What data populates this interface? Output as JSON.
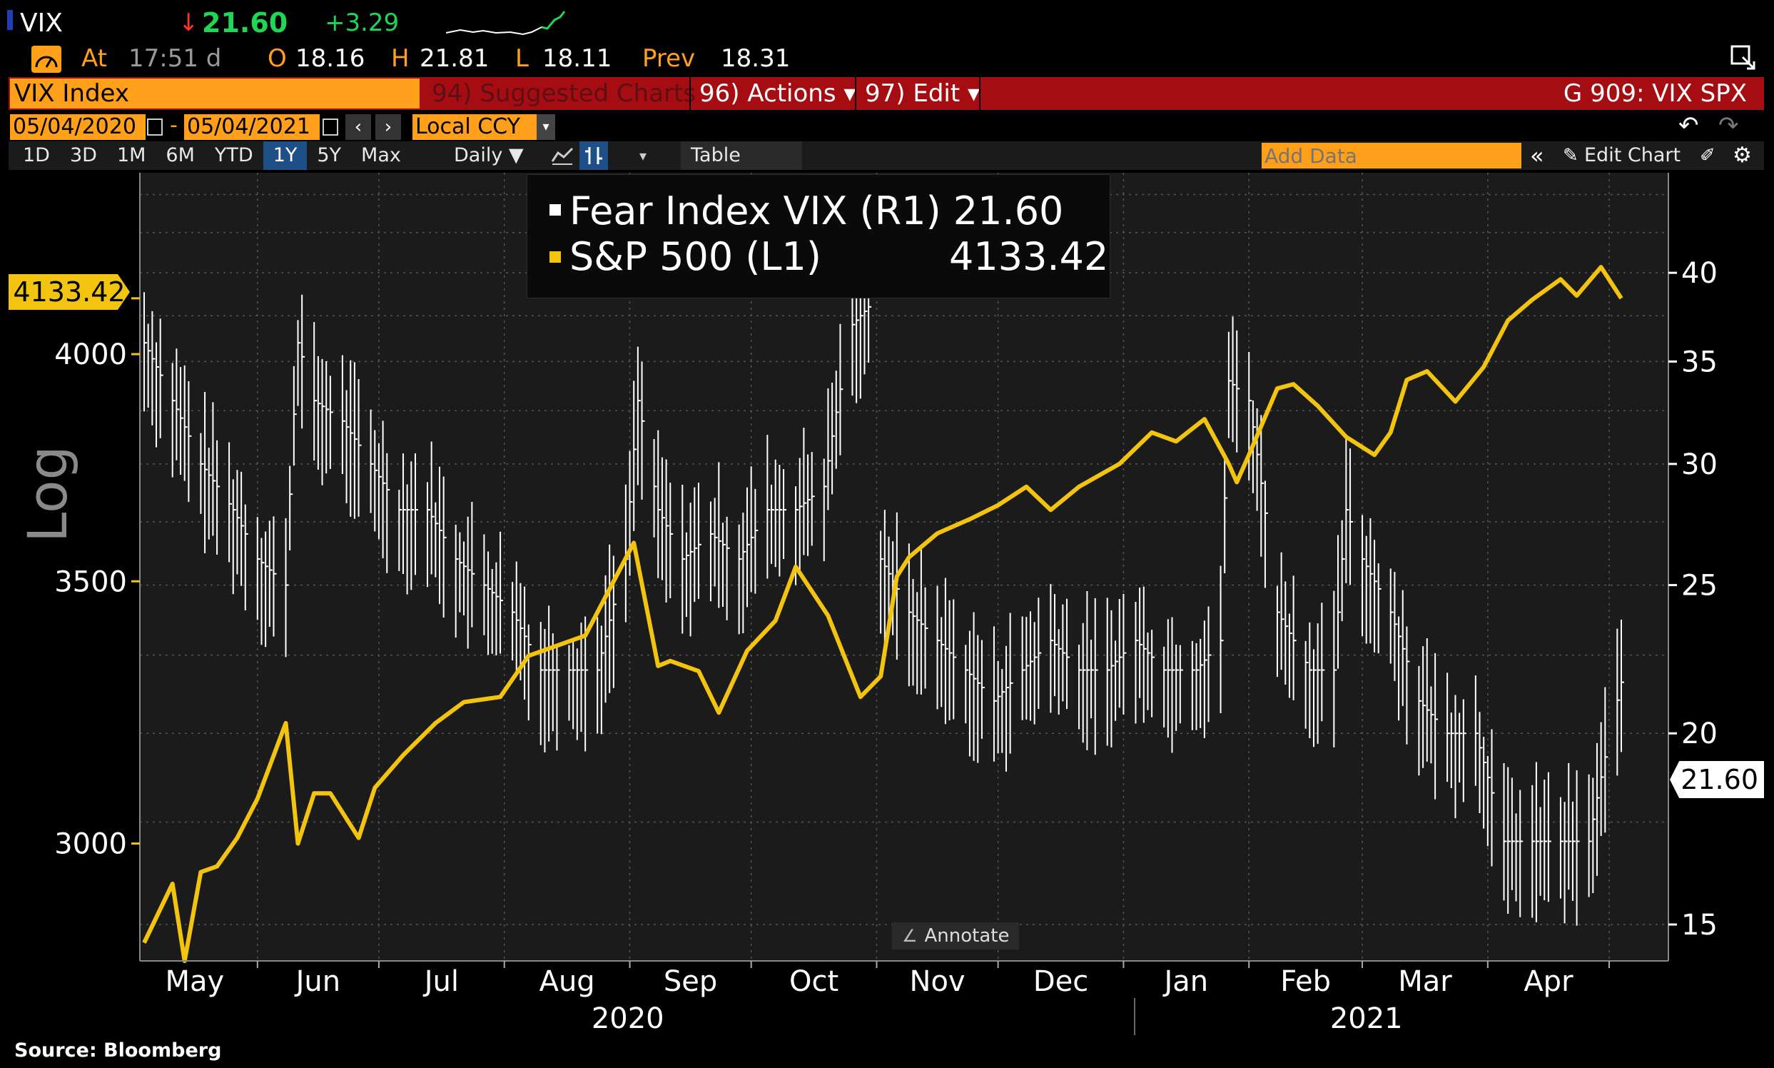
{
  "header": {
    "ticker": "VIX",
    "arrow": "↓",
    "last": "21.60",
    "change": "+3.29",
    "at_label": "At",
    "time": "17:51 d",
    "open_label": "O",
    "open": "18.16",
    "high_label": "H",
    "high": "21.81",
    "low_label": "L",
    "low": "18.11",
    "prev_label": "Prev",
    "prev": "18.31"
  },
  "menubar": {
    "security": "VIX Index",
    "suggested": "94) Suggested Charts",
    "actions": "96) Actions ▾",
    "edit": "97) Edit ▾",
    "chart_code": "G 909: VIX SPX"
  },
  "daterow": {
    "start": "05/04/2020",
    "dash": "-",
    "end": "05/04/2021",
    "currency": "Local CCY"
  },
  "toolbar": {
    "periods": [
      "1D",
      "3D",
      "1M",
      "6M",
      "YTD",
      "1Y",
      "5Y",
      "Max"
    ],
    "active": "1Y",
    "frequency": "Daily ▼",
    "table": "Table",
    "add_data_placeholder": "Add Data",
    "edit_chart": "Edit Chart"
  },
  "legend": {
    "vix_label": "Fear Index VIX (R1) 21.60",
    "spx_label": "S&P 500 (L1)",
    "spx_value": "4133.42"
  },
  "annotate": "Annotate",
  "log_label": "Log",
  "source": "Source:  Bloomberg",
  "colors": {
    "spx": "#f2c40f",
    "vix": "#ffffff",
    "accent": "#ff9f1a",
    "menubar": "#a50d12"
  },
  "chart_data": {
    "type": "line",
    "title": "",
    "scale": "log",
    "x_range": [
      "2020-05-04",
      "2021-05-04"
    ],
    "months": [
      "May",
      "Jun",
      "Jul",
      "Aug",
      "Sep",
      "Oct",
      "Nov",
      "Dec",
      "Jan",
      "Feb",
      "Mar",
      "Apr"
    ],
    "years": [
      "2020",
      "2021"
    ],
    "left_axis": {
      "ticks": [
        "3000",
        "3500",
        "4000"
      ],
      "range": [
        2800,
        4450
      ],
      "last_label": "4133.42"
    },
    "right_axis": {
      "ticks": [
        "15",
        "20",
        "25",
        "30",
        "35",
        "40"
      ],
      "range": [
        14.2,
        46.5
      ],
      "last_label": "21.60"
    },
    "series": [
      {
        "name": "S&P 500 (L1)",
        "axis": "left",
        "style": "line",
        "x": [
          "2020-05-04",
          "2020-05-11",
          "2020-05-14",
          "2020-05-18",
          "2020-05-22",
          "2020-05-27",
          "2020-06-01",
          "2020-06-08",
          "2020-06-11",
          "2020-06-15",
          "2020-06-19",
          "2020-06-26",
          "2020-06-30",
          "2020-07-07",
          "2020-07-15",
          "2020-07-22",
          "2020-07-31",
          "2020-08-07",
          "2020-08-14",
          "2020-08-21",
          "2020-08-28",
          "2020-09-02",
          "2020-09-08",
          "2020-09-11",
          "2020-09-18",
          "2020-09-23",
          "2020-09-30",
          "2020-10-07",
          "2020-10-12",
          "2020-10-20",
          "2020-10-28",
          "2020-11-02",
          "2020-11-06",
          "2020-11-09",
          "2020-11-16",
          "2020-11-24",
          "2020-12-01",
          "2020-12-08",
          "2020-12-14",
          "2020-12-21",
          "2020-12-31",
          "2021-01-08",
          "2021-01-14",
          "2021-01-21",
          "2021-01-27",
          "2021-01-29",
          "2021-02-01",
          "2021-02-08",
          "2021-02-12",
          "2021-02-18",
          "2021-02-25",
          "2021-03-04",
          "2021-03-08",
          "2021-03-12",
          "2021-03-17",
          "2021-03-24",
          "2021-03-31",
          "2021-04-06",
          "2021-04-12",
          "2021-04-19",
          "2021-04-23",
          "2021-04-29",
          "2021-05-04"
        ],
        "values": [
          2830,
          2930,
          2800,
          2950,
          2960,
          3010,
          3080,
          3220,
          3000,
          3090,
          3090,
          3010,
          3100,
          3160,
          3220,
          3260,
          3270,
          3350,
          3370,
          3390,
          3500,
          3580,
          3330,
          3340,
          3320,
          3240,
          3360,
          3420,
          3530,
          3430,
          3270,
          3310,
          3510,
          3550,
          3600,
          3630,
          3660,
          3700,
          3650,
          3700,
          3750,
          3820,
          3800,
          3850,
          3750,
          3710,
          3770,
          3920,
          3930,
          3880,
          3810,
          3770,
          3820,
          3940,
          3960,
          3890,
          3970,
          4080,
          4130,
          4180,
          4140,
          4210,
          4133.42
        ]
      },
      {
        "name": "Fear Index VIX (R1)",
        "axis": "right",
        "style": "hlc bars",
        "x": [
          "2020-05-04",
          "2020-05-11",
          "2020-05-18",
          "2020-05-26",
          "2020-06-01",
          "2020-06-08",
          "2020-06-11",
          "2020-06-15",
          "2020-06-22",
          "2020-06-29",
          "2020-07-06",
          "2020-07-13",
          "2020-07-20",
          "2020-07-27",
          "2020-08-03",
          "2020-08-10",
          "2020-08-17",
          "2020-08-24",
          "2020-08-31",
          "2020-09-03",
          "2020-09-08",
          "2020-09-14",
          "2020-09-21",
          "2020-09-28",
          "2020-10-05",
          "2020-10-12",
          "2020-10-19",
          "2020-10-26",
          "2020-10-30",
          "2020-11-02",
          "2020-11-09",
          "2020-11-16",
          "2020-11-23",
          "2020-11-30",
          "2020-12-07",
          "2020-12-14",
          "2020-12-21",
          "2020-12-28",
          "2021-01-04",
          "2021-01-11",
          "2021-01-19",
          "2021-01-25",
          "2021-01-27",
          "2021-02-01",
          "2021-02-08",
          "2021-02-16",
          "2021-02-22",
          "2021-02-25",
          "2021-03-01",
          "2021-03-08",
          "2021-03-15",
          "2021-03-22",
          "2021-03-29",
          "2021-04-05",
          "2021-04-12",
          "2021-04-19",
          "2021-04-26",
          "2021-05-04"
        ],
        "values": [
          36,
          33,
          30,
          28,
          26,
          25,
          36,
          33,
          32,
          30,
          28,
          28,
          26,
          25,
          24,
          22,
          22,
          22,
          26,
          33,
          28,
          26,
          27,
          26,
          28,
          28,
          29,
          37,
          38,
          26,
          24,
          23,
          22,
          21,
          22,
          23,
          22,
          22,
          23,
          22,
          22,
          23,
          34,
          33,
          24,
          22,
          22,
          28,
          26,
          24,
          21,
          20,
          20,
          17,
          17,
          17,
          17,
          21.6
        ]
      }
    ]
  }
}
